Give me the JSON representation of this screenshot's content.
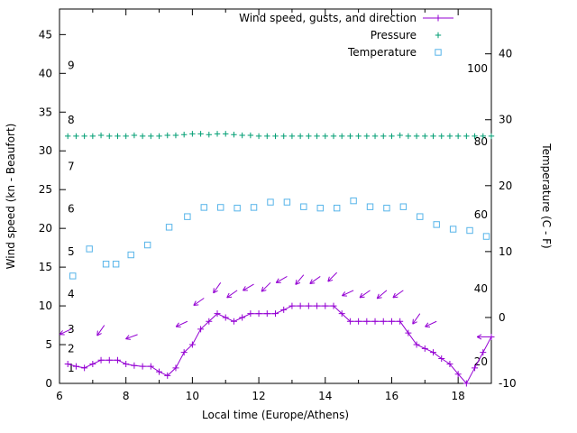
{
  "chart_data": {
    "type": "line",
    "title": "",
    "xlabel": "Local time (Europe/Athens)",
    "ylabel_left": "Wind speed (kn - Beaufort)",
    "ylabel_right": "Temperature (C - F)",
    "xlim": [
      6,
      19
    ],
    "ylim_left": [
      0,
      48.3
    ],
    "ylim_right": [
      -10,
      46.8
    ],
    "x_major_ticks": [
      6,
      8,
      10,
      12,
      14,
      16,
      18
    ],
    "x_minor_ticks": [
      7,
      9,
      11,
      13,
      15,
      17
    ],
    "y_left_ticks": [
      0,
      5,
      10,
      15,
      20,
      25,
      30,
      35,
      40,
      45
    ],
    "y_right_ticks": [
      -10,
      0,
      10,
      20,
      30,
      40
    ],
    "beaufort_labels": [
      {
        "label": "1",
        "kn": 2
      },
      {
        "label": "2",
        "kn": 4.5
      },
      {
        "label": "3",
        "kn": 7
      },
      {
        "label": "4",
        "kn": 11.5
      },
      {
        "label": "5",
        "kn": 17
      },
      {
        "label": "6",
        "kn": 22.5
      },
      {
        "label": "7",
        "kn": 28
      },
      {
        "label": "8",
        "kn": 34
      },
      {
        "label": "9",
        "kn": 41
      }
    ],
    "fahrenheit_labels": [
      {
        "label": "20",
        "c": -6.7
      },
      {
        "label": "40",
        "c": 4.4
      },
      {
        "label": "60",
        "c": 15.6
      },
      {
        "label": "80",
        "c": 26.7
      },
      {
        "label": "100",
        "c": 37.8
      }
    ],
    "legend": [
      {
        "label": "Wind speed, gusts, and direction",
        "series": "wind"
      },
      {
        "label": "Pressure",
        "series": "pressure"
      },
      {
        "label": "Temperature",
        "series": "temperature"
      }
    ],
    "series": {
      "wind": {
        "color": "#9400d3",
        "marker": "plus",
        "axis": "left",
        "x_start": 6.25,
        "x_step": 0.25,
        "values": [
          2.5,
          2.2,
          2.0,
          2.5,
          3.0,
          3.0,
          3.0,
          2.5,
          2.3,
          2.2,
          2.2,
          1.5,
          1.0,
          2.0,
          4.0,
          5.0,
          7.0,
          8.0,
          9.0,
          8.5,
          8.0,
          8.5,
          9.0,
          9.0,
          9.0,
          9.0,
          9.5,
          10.0,
          10.0,
          10.0,
          10.0,
          10.0,
          10.0,
          9.0,
          8.0,
          8.0,
          8.0,
          8.0,
          8.0,
          8.0,
          8.0,
          6.5,
          5.0,
          4.5,
          4.0,
          3.2,
          2.5,
          1.2,
          0.0,
          2.0,
          4.0,
          6.0
        ]
      },
      "gusts": {
        "color": "#9400d3",
        "type": "vector",
        "axis": "left",
        "points": [
          [
            6.35,
            7.0,
            205
          ],
          [
            7.35,
            7.5,
            235
          ],
          [
            8.35,
            6.3,
            200
          ],
          [
            9.85,
            8.0,
            205
          ],
          [
            10.35,
            11.0,
            215
          ],
          [
            10.85,
            13.0,
            235
          ],
          [
            11.35,
            12.0,
            215
          ],
          [
            11.85,
            12.8,
            210
          ],
          [
            12.35,
            13.0,
            225
          ],
          [
            12.85,
            13.8,
            210
          ],
          [
            13.35,
            14.0,
            230
          ],
          [
            13.85,
            13.8,
            215
          ],
          [
            14.35,
            14.3,
            225
          ],
          [
            14.85,
            12.0,
            205
          ],
          [
            15.35,
            12.0,
            215
          ],
          [
            15.85,
            12.0,
            220
          ],
          [
            16.35,
            12.0,
            215
          ],
          [
            16.85,
            9.0,
            235
          ],
          [
            17.35,
            8.0,
            205
          ],
          [
            18.95,
            6.0,
            180
          ]
        ]
      },
      "pressure": {
        "color": "#009e73",
        "marker": "plus",
        "axis": "left",
        "x_start": 6.25,
        "x_step": 0.25,
        "values": [
          31.9,
          31.9,
          31.9,
          31.9,
          32.0,
          31.9,
          31.9,
          31.9,
          32.0,
          31.9,
          31.9,
          31.9,
          32.0,
          32.0,
          32.1,
          32.2,
          32.2,
          32.1,
          32.2,
          32.2,
          32.1,
          32.0,
          32.0,
          31.9,
          31.9,
          31.9,
          31.9,
          31.9,
          31.9,
          31.9,
          31.9,
          31.9,
          31.9,
          31.9,
          31.9,
          31.9,
          31.9,
          31.9,
          31.9,
          31.9,
          32.0,
          31.9,
          31.9,
          31.9,
          31.9,
          31.9,
          31.9,
          31.9,
          31.9,
          31.9,
          31.9,
          31.9
        ]
      },
      "temperature": {
        "color": "#56b4e9",
        "marker": "square",
        "axis": "right",
        "points": [
          [
            6.4,
            6.3
          ],
          [
            6.9,
            10.4
          ],
          [
            7.4,
            8.1
          ],
          [
            7.7,
            8.1
          ],
          [
            8.15,
            9.5
          ],
          [
            8.65,
            11.0
          ],
          [
            9.3,
            13.7
          ],
          [
            9.85,
            15.3
          ],
          [
            10.35,
            16.7
          ],
          [
            10.85,
            16.7
          ],
          [
            11.35,
            16.6
          ],
          [
            11.85,
            16.7
          ],
          [
            12.35,
            17.5
          ],
          [
            12.85,
            17.5
          ],
          [
            13.35,
            16.8
          ],
          [
            13.85,
            16.6
          ],
          [
            14.35,
            16.6
          ],
          [
            14.85,
            17.7
          ],
          [
            15.35,
            16.8
          ],
          [
            15.85,
            16.6
          ],
          [
            16.35,
            16.8
          ],
          [
            16.85,
            15.3
          ],
          [
            17.35,
            14.1
          ],
          [
            17.85,
            13.4
          ],
          [
            18.35,
            13.2
          ],
          [
            18.85,
            12.3
          ]
        ]
      }
    }
  }
}
